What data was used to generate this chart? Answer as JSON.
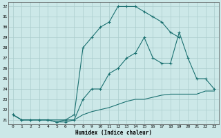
{
  "xlabel": "Humidex (Indice chaleur)",
  "bg_color": "#cce8e8",
  "line_color": "#1a7070",
  "grid_color": "#aacccc",
  "xlim": [
    -0.5,
    23.5
  ],
  "ylim": [
    20.6,
    32.4
  ],
  "xticks": [
    0,
    1,
    2,
    3,
    4,
    5,
    6,
    7,
    8,
    9,
    10,
    11,
    12,
    13,
    14,
    15,
    16,
    17,
    18,
    19,
    20,
    21,
    22,
    23
  ],
  "yticks": [
    21,
    22,
    23,
    24,
    25,
    26,
    27,
    28,
    29,
    30,
    31,
    32
  ],
  "line1_x": [
    0,
    1,
    2,
    3,
    4,
    5,
    6,
    7,
    8,
    9,
    10,
    11,
    12,
    13,
    14,
    15,
    16,
    17,
    18,
    19
  ],
  "line1_y": [
    21.5,
    21.0,
    21.0,
    21.0,
    21.0,
    20.8,
    21.0,
    21.5,
    28.0,
    29.0,
    30.0,
    30.5,
    32.0,
    32.0,
    32.0,
    31.5,
    31.0,
    30.5,
    29.5,
    29.0
  ],
  "line2_x": [
    0,
    1,
    2,
    3,
    4,
    5,
    6,
    7,
    8,
    9,
    10,
    11,
    12,
    13,
    14,
    15,
    16,
    17,
    18,
    19,
    20,
    21,
    22,
    23
  ],
  "line2_y": [
    21.5,
    21.0,
    21.0,
    21.0,
    21.0,
    20.8,
    20.8,
    21.0,
    23.0,
    24.0,
    24.0,
    25.5,
    26.0,
    27.0,
    27.5,
    29.0,
    27.0,
    26.5,
    26.5,
    29.5,
    27.0,
    25.0,
    25.0,
    24.0
  ],
  "line3_x": [
    0,
    1,
    2,
    3,
    4,
    5,
    6,
    7,
    8,
    9,
    10,
    11,
    12,
    13,
    14,
    15,
    16,
    17,
    18,
    19,
    20,
    21,
    22,
    23
  ],
  "line3_y": [
    21.5,
    21.0,
    21.0,
    21.0,
    21.0,
    21.0,
    21.0,
    21.0,
    21.5,
    21.8,
    22.0,
    22.2,
    22.5,
    22.8,
    23.0,
    23.0,
    23.2,
    23.4,
    23.5,
    23.5,
    23.5,
    23.5,
    23.8,
    23.8
  ]
}
